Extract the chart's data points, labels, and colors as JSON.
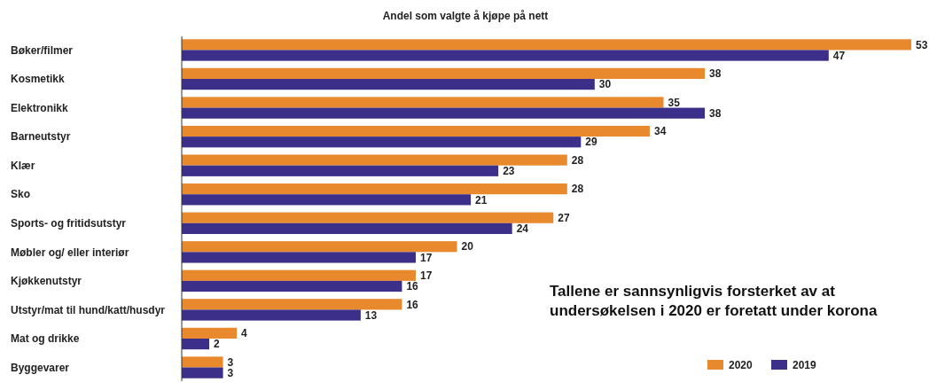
{
  "chart_data": {
    "type": "bar",
    "orientation": "horizontal",
    "title": "Andel som valgte å kjøpe på nett",
    "categories": [
      "Bøker/filmer",
      "Kosmetikk",
      "Elektronikk",
      "Barneutstyr",
      "Klær",
      "Sko",
      "Sports- og fritidsutstyr",
      "Møbler og/ eller interiør",
      "Kjøkkenutstyr",
      "Utstyr/mat til hund/katt/husdyr",
      "Mat og drikke",
      "Byggevarer"
    ],
    "series": [
      {
        "name": "2020",
        "color": "#e8892e",
        "values": [
          53,
          38,
          35,
          34,
          28,
          28,
          27,
          20,
          17,
          16,
          4,
          3
        ]
      },
      {
        "name": "2019",
        "color": "#3b2f8a",
        "values": [
          47,
          30,
          38,
          29,
          23,
          21,
          24,
          17,
          16,
          13,
          2,
          3
        ]
      }
    ],
    "xlim": [
      0,
      53
    ],
    "data_labels": true,
    "legend": "bottom right",
    "annotations": [
      "Tallene er sannsynligvis forsterket av at undersøkelsen i 2020 er foretatt under korona"
    ]
  }
}
